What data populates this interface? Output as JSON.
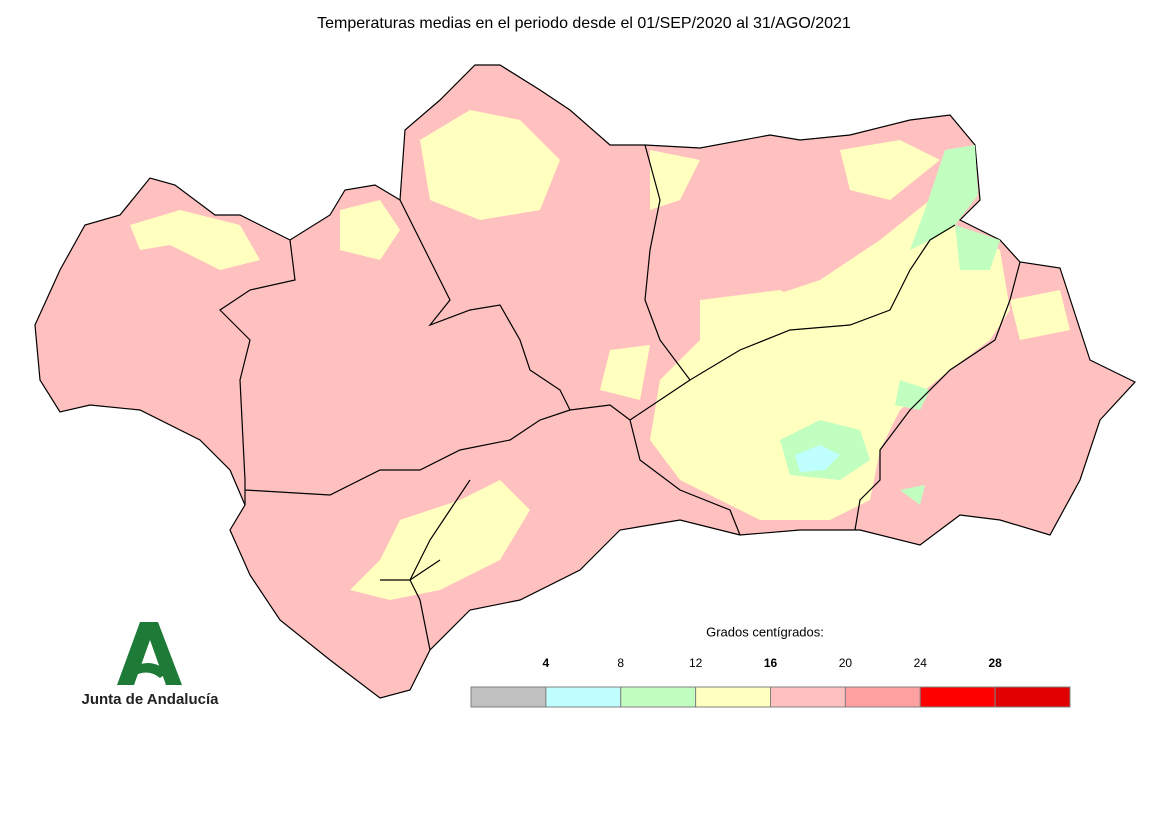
{
  "title": "Temperaturas medias en el periodo desde el 01/SEP/2020 al 31/AGO/2021",
  "legend": {
    "title": "Grados centígrados:",
    "ticks": [
      4,
      8,
      12,
      16,
      20,
      24,
      28
    ],
    "colors": [
      "#c0c0c0",
      "#c0ffff",
      "#c0ffc0",
      "#ffffc0",
      "#ffc0c0",
      "#ffa0a0",
      "#ff0000",
      "#e00000"
    ]
  },
  "logo": {
    "text": "Junta de Andalucía"
  }
}
